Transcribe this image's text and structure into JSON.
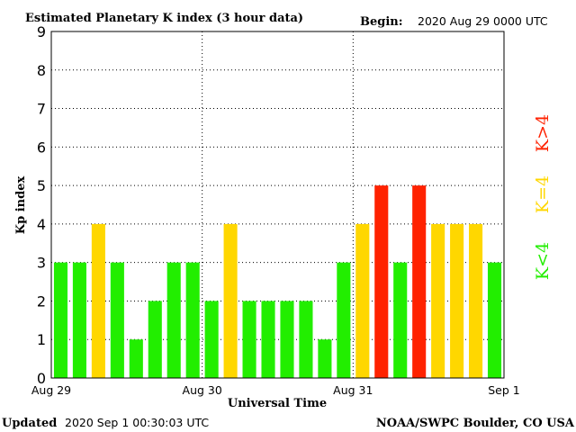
{
  "header": {
    "title": "Estimated Planetary K index (3 hour data)",
    "begin_label": "Begin:",
    "begin_value": "2020 Aug 29 0000 UTC"
  },
  "footer": {
    "updated_label": "Updated",
    "updated_value": "2020 Sep  1 00:30:03 UTC",
    "source": "NOAA/SWPC Boulder, CO USA"
  },
  "legend": {
    "below": "K<4",
    "equal": "K=4",
    "above": "K>4"
  },
  "colors": {
    "below": "#22ee00",
    "equal": "#ffd700",
    "above": "#ff2200",
    "grid": "#000000"
  },
  "chart_data": {
    "type": "bar",
    "title": "Estimated Planetary K index (3 hour data)",
    "xlabel": "Universal Time",
    "ylabel": "Kp index",
    "ylim": [
      0,
      9
    ],
    "yticks": [
      0,
      1,
      2,
      3,
      4,
      5,
      6,
      7,
      8,
      9
    ],
    "xtick_labels": [
      "Aug 29",
      "Aug 30",
      "Aug 31",
      "Sep 1"
    ],
    "grid": true,
    "legend_placement": "right",
    "values": [
      3,
      3,
      4,
      3,
      1,
      2,
      3,
      3,
      2,
      4,
      2,
      2,
      2,
      2,
      1,
      3,
      4,
      5,
      3,
      5,
      4,
      4,
      4,
      3
    ]
  }
}
